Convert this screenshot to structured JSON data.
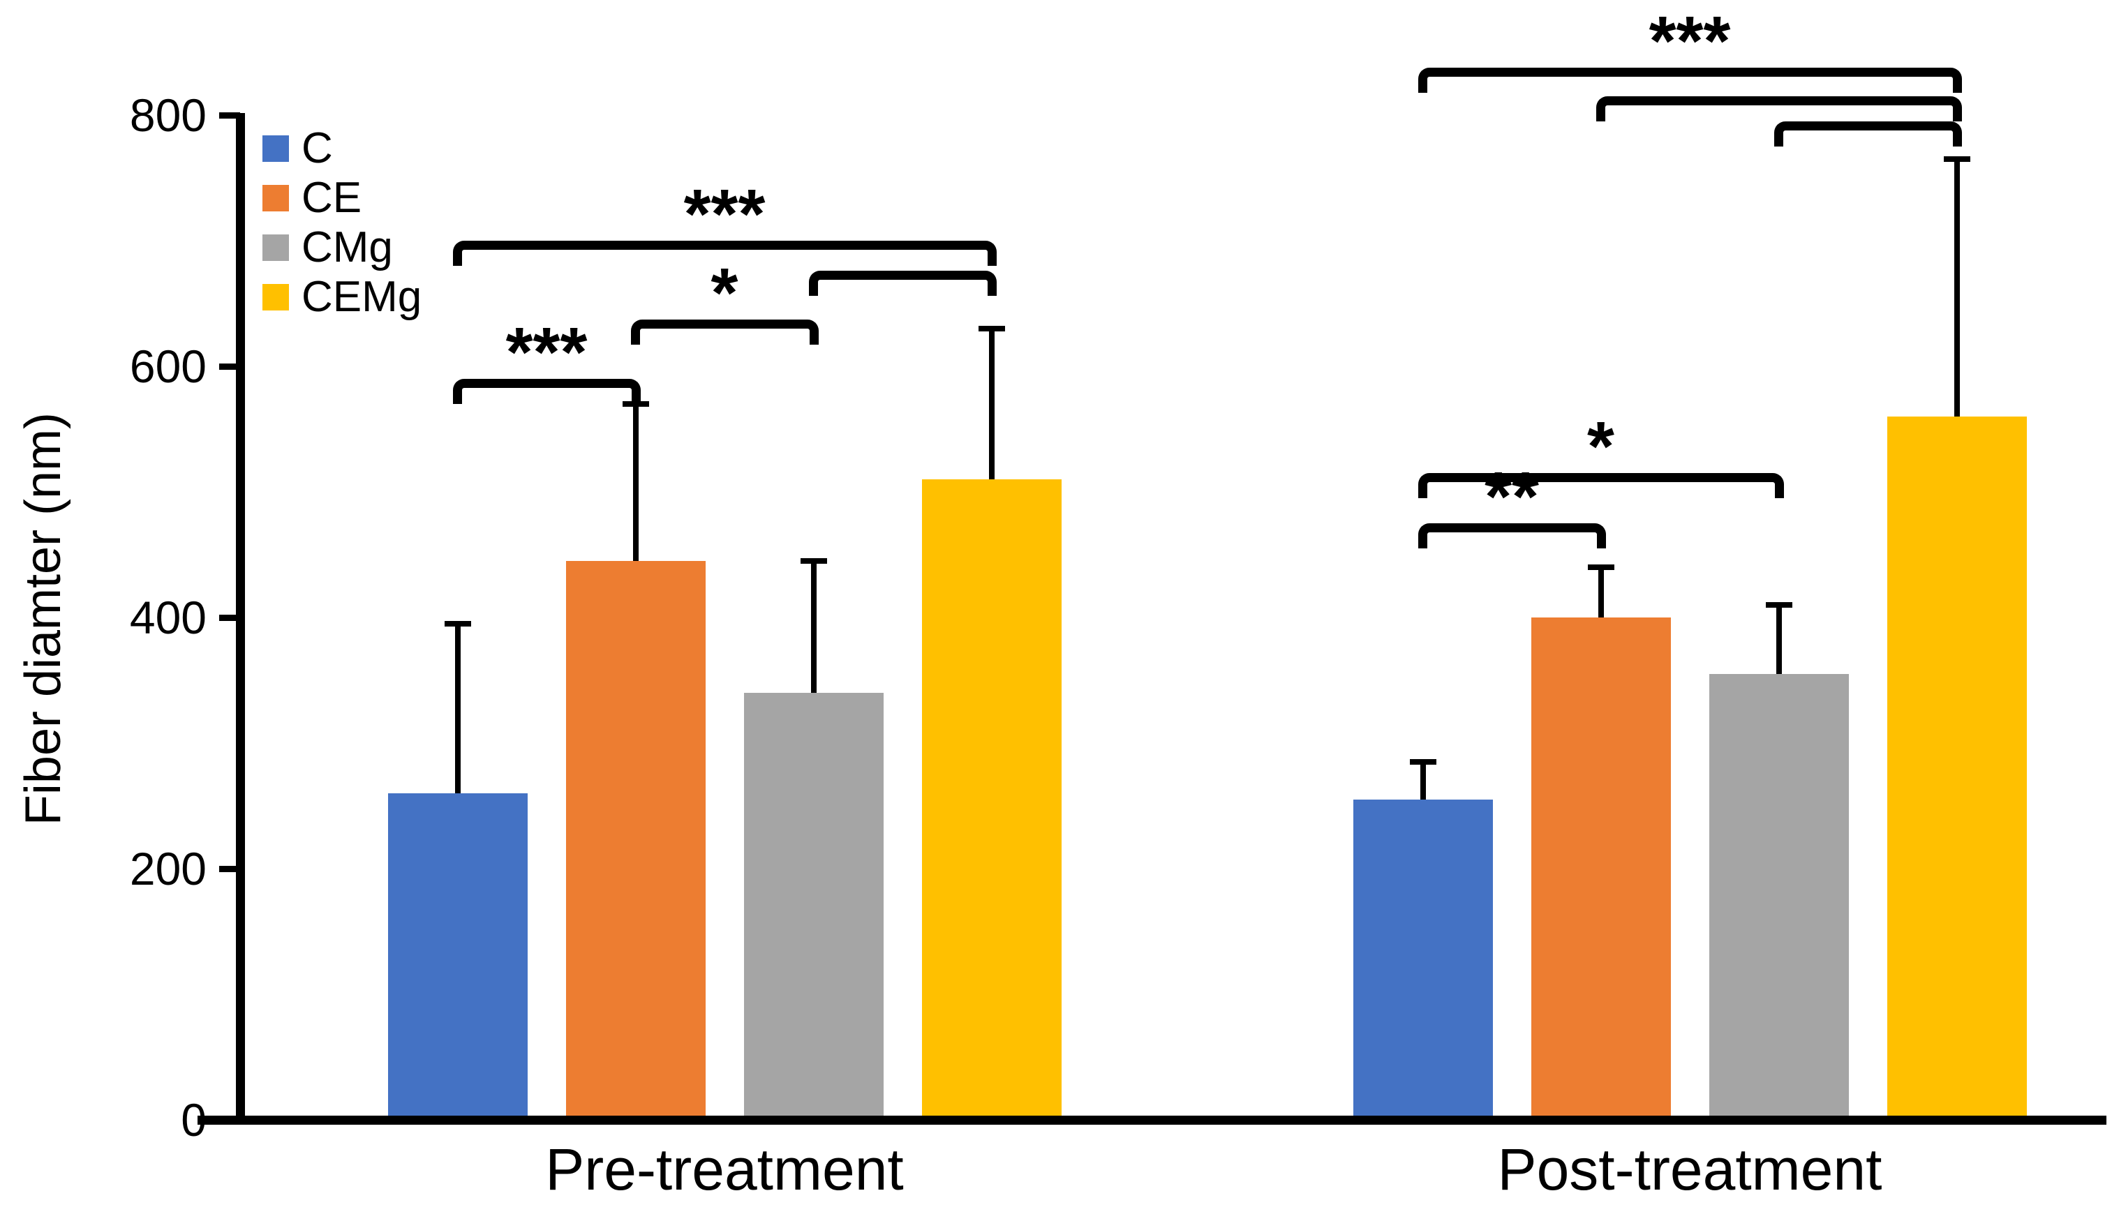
{
  "figure": {
    "background": "#FFFFFF",
    "axis_color": "#000000"
  },
  "chart_data": {
    "type": "bar",
    "title": "",
    "xlabel": "",
    "ylabel": "Fiber diamter (nm)",
    "ylim": [
      0,
      800
    ],
    "yticks": [
      0,
      200,
      400,
      600,
      800
    ],
    "grid": false,
    "legend_position": "top-left-inside",
    "categories": [
      "Pre-treatment",
      "Post-treatment"
    ],
    "series": [
      {
        "name": "C",
        "color": "#4472C4",
        "values": [
          260,
          255
        ],
        "error_plus": [
          135,
          30
        ]
      },
      {
        "name": "CE",
        "color": "#ED7D31",
        "values": [
          445,
          400
        ],
        "error_plus": [
          125,
          40
        ]
      },
      {
        "name": "CMg",
        "color": "#A5A5A5",
        "values": [
          340,
          355
        ],
        "error_plus": [
          105,
          55
        ]
      },
      {
        "name": "CEMg",
        "color": "#FFC000",
        "values": [
          510,
          560
        ],
        "error_plus": [
          120,
          205
        ]
      }
    ],
    "significance_brackets": [
      {
        "category": 0,
        "from": "C",
        "to": "CE",
        "y": 590,
        "label": "***"
      },
      {
        "category": 0,
        "from": "CE",
        "to": "CMg",
        "y": 637,
        "label": "*"
      },
      {
        "category": 0,
        "from": "CMg",
        "to": "CEMg",
        "y": 676,
        "label": ""
      },
      {
        "category": 0,
        "from": "C",
        "to": "CEMg",
        "y": 700,
        "label": "***"
      },
      {
        "category": 1,
        "from": "C",
        "to": "CE",
        "y": 475,
        "label": "**"
      },
      {
        "category": 1,
        "from": "C",
        "to": "CMg",
        "y": 515,
        "label": "*"
      },
      {
        "category": 1,
        "from": "CMg",
        "to": "CEMg",
        "y": 795,
        "label": ""
      },
      {
        "category": 1,
        "from": "CE",
        "to": "CEMg",
        "y": 815,
        "label": ""
      },
      {
        "category": 1,
        "from": "C",
        "to": "CEMg",
        "y": 838,
        "label": "***"
      }
    ]
  }
}
